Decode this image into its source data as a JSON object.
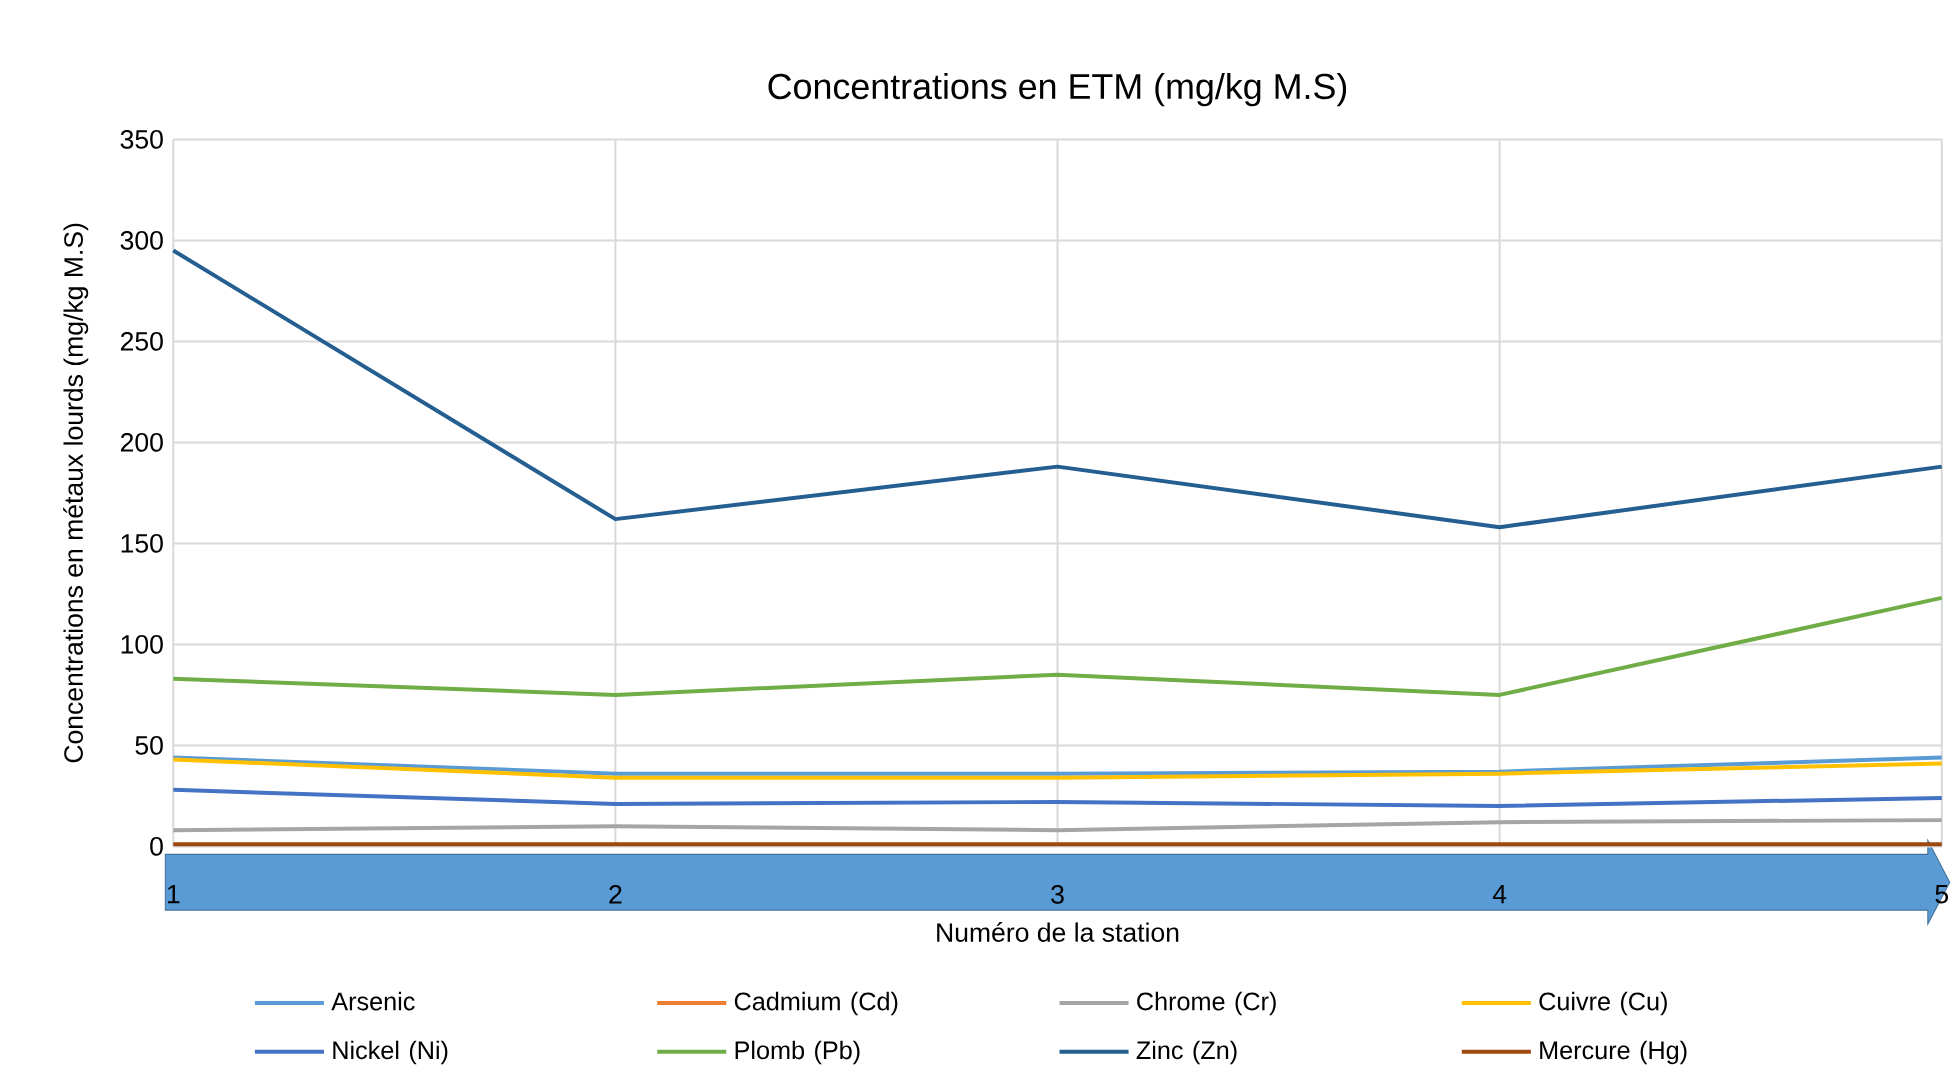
{
  "chart_data": {
    "type": "line",
    "title": "Concentrations en ETM (mg/kg M.S)",
    "xlabel": "Numéro de la station",
    "ylabel": "Concentrations en métaux lourds (mg/kg M.S)",
    "categories": [
      "1",
      "2",
      "3",
      "4",
      "5"
    ],
    "series": [
      {
        "name": "Arsenic",
        "color": "#5b9bd5",
        "values": [
          44,
          36,
          36,
          37,
          44
        ]
      },
      {
        "name": "Cadmium (Cd)",
        "color": "#ed7d31",
        "values": [
          null,
          null,
          null,
          null,
          null
        ]
      },
      {
        "name": "Chrome (Cr)",
        "color": "#a5a5a5",
        "values": [
          8,
          10,
          8,
          12,
          13
        ]
      },
      {
        "name": "Cuivre (Cu)",
        "color": "#ffc000",
        "values": [
          43,
          34,
          34,
          36,
          41
        ]
      },
      {
        "name": "Nickel (Ni)",
        "color": "#4472c4",
        "values": [
          28,
          21,
          22,
          20,
          24
        ]
      },
      {
        "name": "Plomb (Pb)",
        "color": "#70ad47",
        "values": [
          83,
          75,
          85,
          75,
          123
        ]
      },
      {
        "name": "Zinc (Zn)",
        "color": "#255e91",
        "values": [
          295,
          162,
          188,
          158,
          188
        ]
      },
      {
        "name": "Mercure (Hg)",
        "color": "#9e480e",
        "values": [
          1,
          1,
          1,
          1,
          1
        ]
      }
    ],
    "ylim": [
      0,
      350
    ],
    "yticks": [
      0,
      50,
      100,
      150,
      200,
      250,
      300,
      350
    ],
    "grid": true,
    "legend": "bottom",
    "marker": "none",
    "line_style": "solid"
  }
}
